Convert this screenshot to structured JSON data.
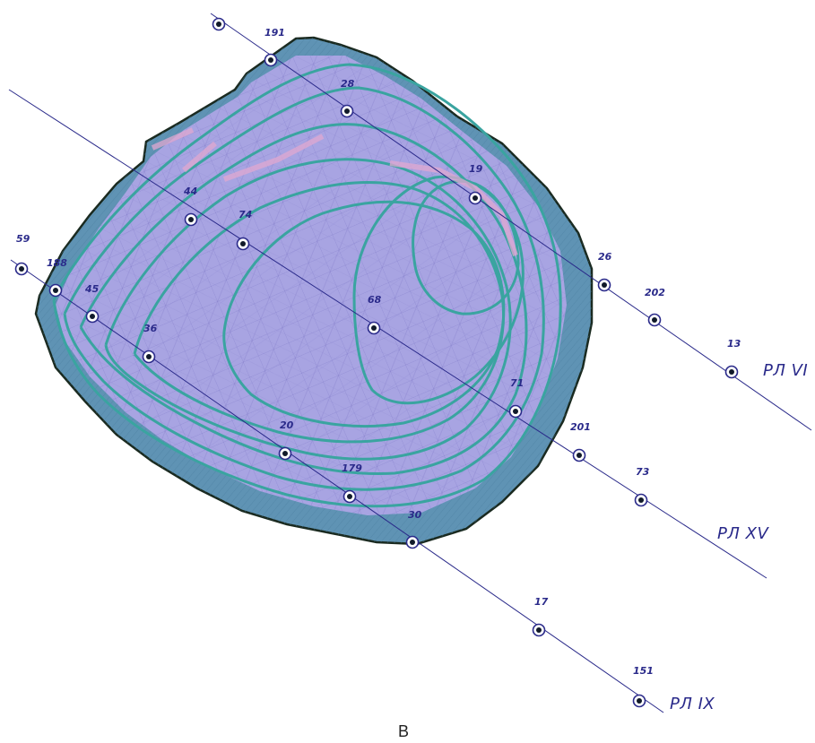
{
  "figure": {
    "panel_letter": "B"
  },
  "colors": {
    "outer_fill": "#5f93b4",
    "inner_fill": "#a8a4e2",
    "contour": "#3aa4a0",
    "boundary": "#1a2a20",
    "profile_line": "#2a2a8a",
    "label": "#2a2a8a"
  },
  "profile_lines": [
    {
      "id": "rl-vi",
      "label": "РЛ VI"
    },
    {
      "id": "rl-xv",
      "label": "РЛ XV"
    },
    {
      "id": "rl-ix",
      "label": "РЛ IX"
    }
  ],
  "wells": [
    {
      "id": "191",
      "label": "191"
    },
    {
      "id": "28",
      "label": "28"
    },
    {
      "id": "19",
      "label": "19"
    },
    {
      "id": "26",
      "label": "26"
    },
    {
      "id": "202",
      "label": "202"
    },
    {
      "id": "13",
      "label": "13"
    },
    {
      "id": "44",
      "label": "44"
    },
    {
      "id": "74",
      "label": "74"
    },
    {
      "id": "68",
      "label": "68"
    },
    {
      "id": "71",
      "label": "71"
    },
    {
      "id": "201",
      "label": "201"
    },
    {
      "id": "73",
      "label": "73"
    },
    {
      "id": "59",
      "label": "59"
    },
    {
      "id": "188",
      "label": "188"
    },
    {
      "id": "45",
      "label": "45"
    },
    {
      "id": "36",
      "label": "36"
    },
    {
      "id": "20",
      "label": "20"
    },
    {
      "id": "179",
      "label": "179"
    },
    {
      "id": "30",
      "label": "30"
    },
    {
      "id": "17",
      "label": "17"
    },
    {
      "id": "151",
      "label": "151"
    },
    {
      "id": "unlabeled-top",
      "label": ""
    }
  ]
}
